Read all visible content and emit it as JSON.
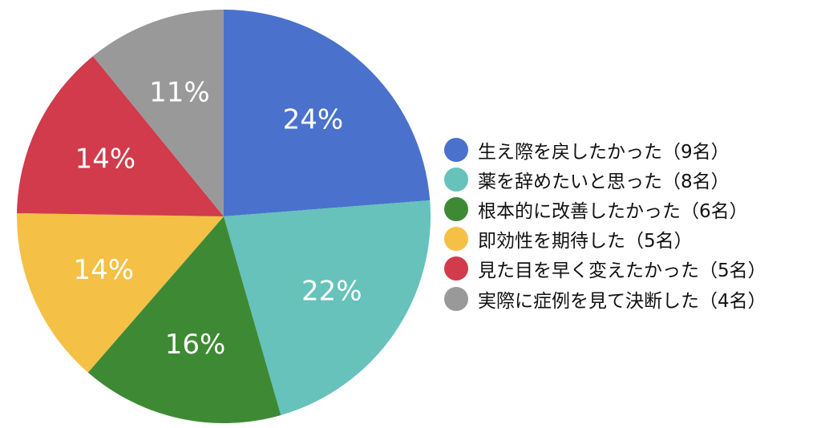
{
  "chart_data": {
    "type": "pie",
    "title": "",
    "start_angle_deg": 0,
    "direction": "clockwise",
    "legend_position": "right",
    "slices": [
      {
        "label": "生え際を戻したかった（9名）",
        "value": 24,
        "value_label": "24%",
        "color": "#4a72cc"
      },
      {
        "label": "薬を辞めたいと思った（8名）",
        "value": 22,
        "value_label": "22%",
        "color": "#66c2bb"
      },
      {
        "label": "根本的に改善したかった（6名）",
        "value": 16,
        "value_label": "16%",
        "color": "#3e8a34"
      },
      {
        "label": "即効性を期待した（5名）",
        "value": 14,
        "value_label": "14%",
        "color": "#f4c046"
      },
      {
        "label": "見た目を早く変えたかった（5名）",
        "value": 14,
        "value_label": "14%",
        "color": "#d13b4c"
      },
      {
        "label": "実際に症例を見て決断した（4名）",
        "value": 11,
        "value_label": "11%",
        "color": "#999999"
      }
    ]
  }
}
